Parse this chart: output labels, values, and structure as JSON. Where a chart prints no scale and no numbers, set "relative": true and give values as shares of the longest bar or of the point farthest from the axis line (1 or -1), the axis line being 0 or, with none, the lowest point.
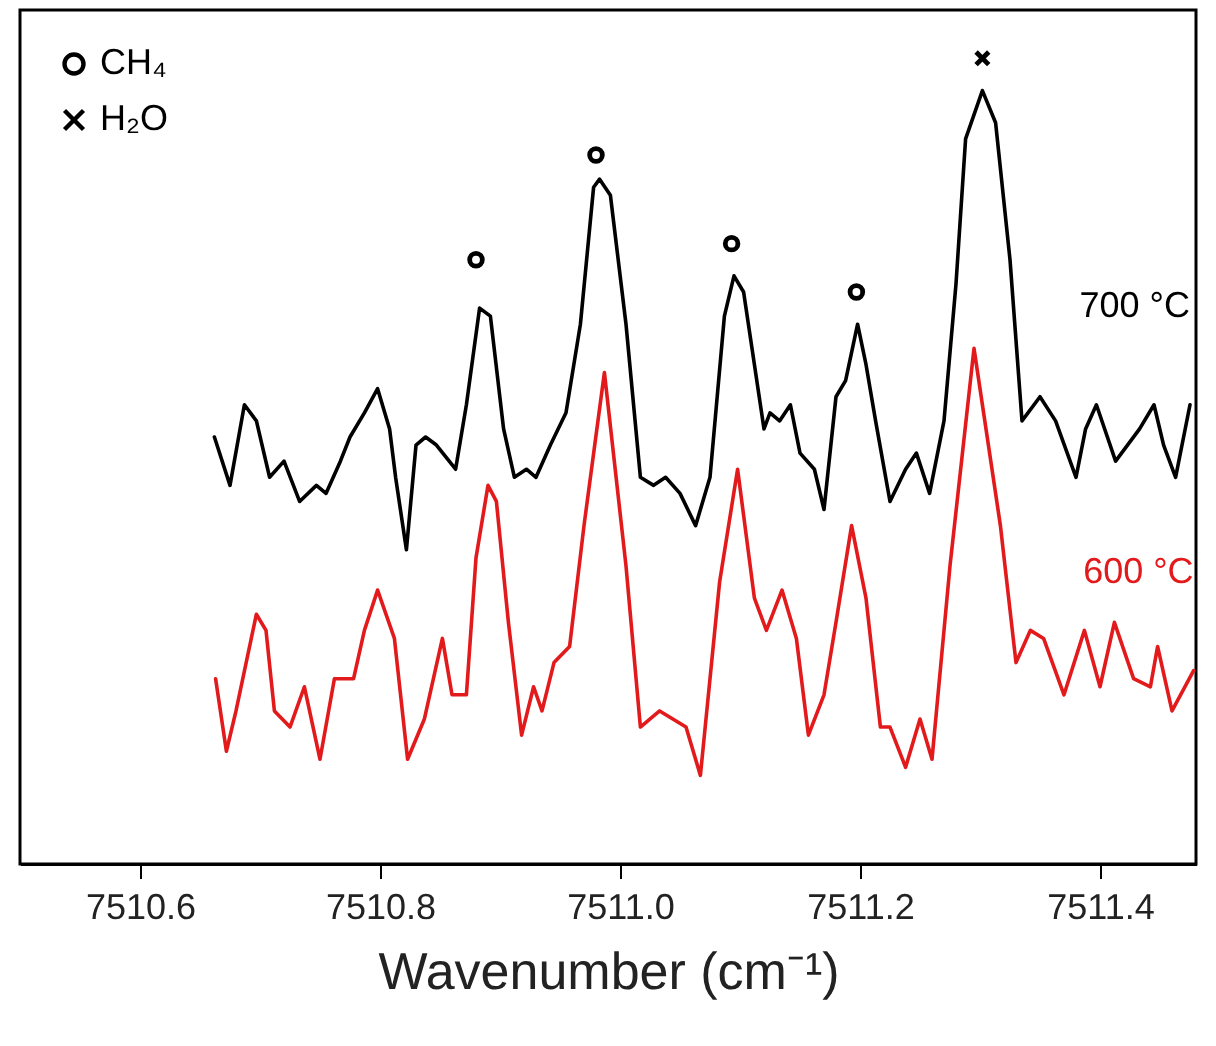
{
  "chart_data": {
    "type": "line",
    "relative": true,
    "xlabel": "Wavenumber (cm⁻¹)",
    "xlim": [
      7510.5,
      7511.48
    ],
    "xticks": [
      7510.6,
      7510.8,
      {
        "value": 7511,
        "label": "7511.0"
      },
      7511.2,
      7511.4
    ],
    "grid": false,
    "legend": "top left",
    "series": [
      {
        "name": "700 °C",
        "color": "#000000",
        "x": [
          7510.662,
          7510.675,
          7510.687,
          7510.697,
          7510.708,
          7510.72,
          7510.733,
          7510.747,
          7510.755,
          7510.767,
          7510.775,
          7510.787,
          7510.798,
          7510.808,
          7510.813,
          7510.822,
          7510.83,
          7510.838,
          7510.847,
          7510.863,
          7510.872,
          7510.883,
          7510.892,
          7510.903,
          7510.912,
          7510.922,
          7510.93,
          7510.942,
          7510.955,
          7510.967,
          7510.978,
          7510.983,
          7510.992,
          7511.005,
          7511.017,
          7511.028,
          7511.038,
          7511.05,
          7511.063,
          7511.075,
          7511.087,
          7511.095,
          7511.103,
          7511.112,
          7511.12,
          7511.125,
          7511.133,
          7511.142,
          7511.15,
          7511.162,
          7511.17,
          7511.18,
          7511.188,
          7511.198,
          7511.205,
          7511.213,
          7511.225,
          7511.238,
          7511.247,
          7511.258,
          7511.27,
          7511.28,
          7511.288,
          7511.302,
          7511.313,
          7511.325,
          7511.335,
          7511.35,
          7511.363,
          7511.38,
          7511.388,
          7511.397,
          7511.413,
          7511.433,
          7511.445,
          7511.453,
          7511.463,
          7511.475
        ],
        "values": [
          0.53,
          0.47,
          0.57,
          0.55,
          0.48,
          0.5,
          0.45,
          0.47,
          0.46,
          0.5,
          0.53,
          0.56,
          0.59,
          0.54,
          0.48,
          0.39,
          0.52,
          0.53,
          0.52,
          0.49,
          0.57,
          0.69,
          0.68,
          0.54,
          0.48,
          0.49,
          0.48,
          0.52,
          0.56,
          0.67,
          0.84,
          0.85,
          0.83,
          0.67,
          0.48,
          0.47,
          0.48,
          0.46,
          0.42,
          0.48,
          0.68,
          0.73,
          0.71,
          0.62,
          0.54,
          0.56,
          0.55,
          0.57,
          0.51,
          0.49,
          0.44,
          0.58,
          0.6,
          0.67,
          0.62,
          0.55,
          0.45,
          0.49,
          0.51,
          0.46,
          0.55,
          0.72,
          0.9,
          0.96,
          0.92,
          0.75,
          0.55,
          0.58,
          0.55,
          0.48,
          0.54,
          0.57,
          0.5,
          0.54,
          0.57,
          0.52,
          0.48,
          0.57
        ]
      },
      {
        "name": "600 °C",
        "color": "#e31a1c",
        "x": [
          7510.663,
          7510.672,
          7510.68,
          7510.697,
          7510.705,
          7510.712,
          7510.725,
          7510.737,
          7510.75,
          7510.762,
          7510.778,
          7510.787,
          7510.798,
          7510.812,
          7510.823,
          7510.837,
          7510.852,
          7510.86,
          7510.872,
          7510.88,
          7510.89,
          7510.897,
          7510.907,
          7510.918,
          7510.928,
          7510.935,
          7510.945,
          7510.958,
          7510.97,
          7510.987,
          7511.005,
          7511.017,
          7511.033,
          7511.055,
          7511.067,
          7511.083,
          7511.098,
          7511.112,
          7511.122,
          7511.135,
          7511.147,
          7511.157,
          7511.17,
          7511.18,
          7511.193,
          7511.205,
          7511.217,
          7511.225,
          7511.238,
          7511.25,
          7511.26,
          7511.275,
          7511.295,
          7511.317,
          7511.33,
          7511.342,
          7511.353,
          7511.37,
          7511.387,
          7511.4,
          7511.412,
          7511.428,
          7511.442,
          7511.448,
          7511.46,
          7511.478
        ],
        "values": [
          0.23,
          0.14,
          0.19,
          0.31,
          0.29,
          0.19,
          0.17,
          0.22,
          0.13,
          0.23,
          0.23,
          0.29,
          0.34,
          0.28,
          0.13,
          0.18,
          0.28,
          0.21,
          0.21,
          0.38,
          0.47,
          0.45,
          0.3,
          0.16,
          0.22,
          0.19,
          0.25,
          0.27,
          0.42,
          0.61,
          0.37,
          0.17,
          0.19,
          0.17,
          0.11,
          0.35,
          0.49,
          0.33,
          0.29,
          0.34,
          0.28,
          0.16,
          0.21,
          0.3,
          0.42,
          0.33,
          0.17,
          0.17,
          0.12,
          0.18,
          0.13,
          0.37,
          0.64,
          0.42,
          0.25,
          0.29,
          0.28,
          0.21,
          0.29,
          0.22,
          0.3,
          0.23,
          0.22,
          0.27,
          0.19,
          0.24
        ]
      },
      {
        "name": "CH₄",
        "type": "scatter",
        "marker": "circle",
        "color": "#000000",
        "x": [
          7510.88,
          7510.98,
          7511.093,
          7511.197
        ],
        "values": [
          0.75,
          0.88,
          0.77,
          0.71
        ]
      },
      {
        "name": "H₂O",
        "type": "scatter",
        "marker": "cross",
        "color": "#000000",
        "x": [
          7511.302
        ],
        "values": [
          1
        ]
      }
    ]
  }
}
